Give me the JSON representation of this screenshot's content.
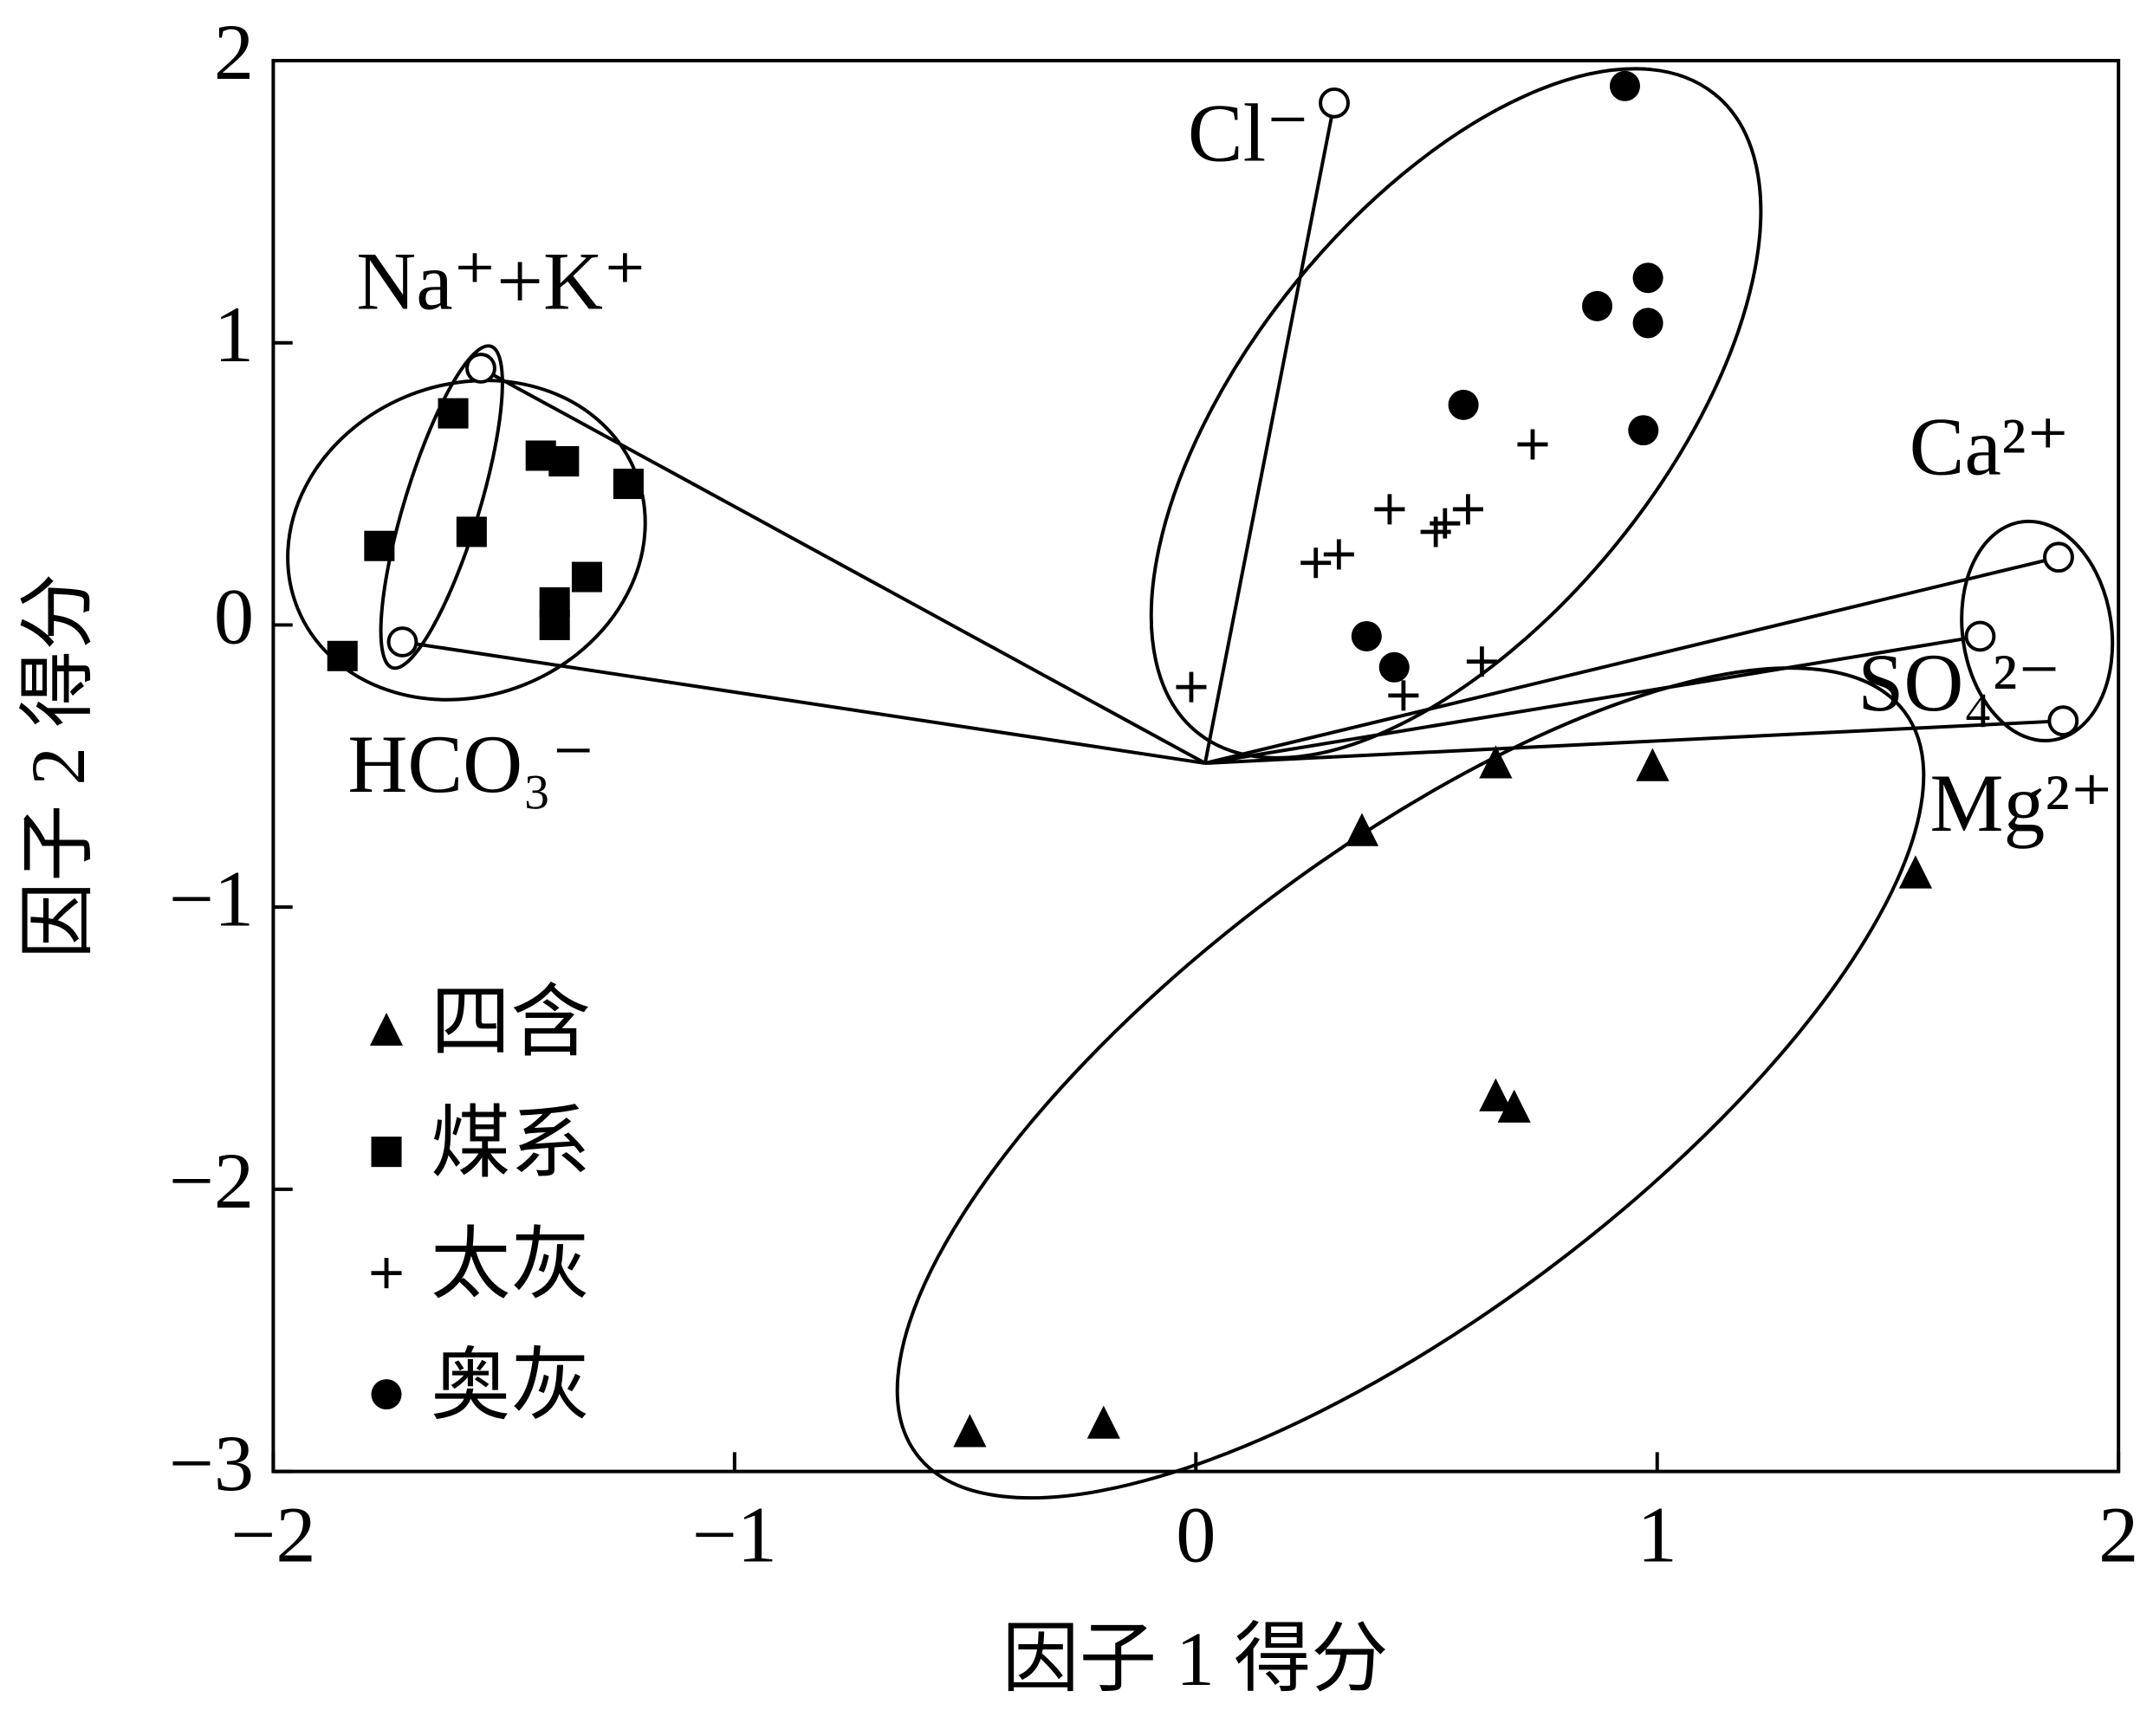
{
  "chart_data": {
    "type": "scatter",
    "xlabel": "因子 1 得分",
    "ylabel": "因子 2 得分",
    "xlim": [
      -2,
      2
    ],
    "ylim": [
      -3,
      2
    ],
    "xticks": [
      {
        "value": -2,
        "label": "−2"
      },
      {
        "value": -1,
        "label": "−1"
      },
      0,
      1,
      2
    ],
    "yticks": [
      {
        "value": -3,
        "label": "−3"
      },
      {
        "value": -2,
        "label": "−2"
      },
      {
        "value": -1,
        "label": "−1"
      },
      0,
      1,
      2
    ],
    "series": [
      {
        "name": "四含",
        "marker": "triangle",
        "color": "#000000",
        "x": [
          -0.49,
          -0.2,
          0.36,
          0.65,
          0.99,
          1.56,
          0.65,
          0.69
        ],
        "values": [
          -2.86,
          -2.83,
          -0.73,
          -0.49,
          -0.5,
          -0.88,
          -1.67,
          -1.71
        ]
      },
      {
        "name": "煤系",
        "marker": "square",
        "color": "#000000",
        "x": [
          -1.85,
          -1.77,
          -1.61,
          -1.57,
          -1.42,
          -1.37,
          -1.23,
          -1.32,
          -1.39,
          -1.39
        ],
        "values": [
          -0.11,
          0.28,
          0.75,
          0.33,
          0.6,
          0.58,
          0.5,
          0.17,
          0.08,
          0.0
        ]
      },
      {
        "name": "太灰",
        "marker": "plus",
        "color": "#000000",
        "x": [
          -0.01,
          0.26,
          0.31,
          0.42,
          0.52,
          0.54,
          0.59,
          0.73,
          0.62,
          0.45
        ],
        "values": [
          -0.22,
          0.22,
          0.25,
          0.41,
          0.33,
          0.36,
          0.41,
          0.64,
          -0.13,
          -0.25
        ]
      },
      {
        "name": "奥灰",
        "marker": "circle",
        "color": "#000000",
        "x": [
          0.93,
          0.87,
          0.98,
          0.98,
          0.97,
          0.58,
          0.37,
          0.43
        ],
        "values": [
          1.91,
          1.13,
          1.23,
          1.07,
          0.69,
          0.78,
          -0.04,
          -0.15
        ]
      }
    ],
    "vector_origin": {
      "x": 0.02,
      "y": -0.49
    },
    "vectors": [
      {
        "label": "Cl⁻",
        "x": 0.3,
        "y": 1.85
      },
      {
        "label": "Na⁺+K⁺",
        "x": -1.55,
        "y": 0.91
      },
      {
        "label": "HCO₃⁻",
        "x": -1.72,
        "y": -0.06
      },
      {
        "label": "Ca²⁺",
        "x": 1.87,
        "y": 0.24
      },
      {
        "label": "SO₄²⁻",
        "x": 1.7,
        "y": -0.04
      },
      {
        "label": "Mg²⁺",
        "x": 1.88,
        "y": -0.34
      }
    ]
  }
}
